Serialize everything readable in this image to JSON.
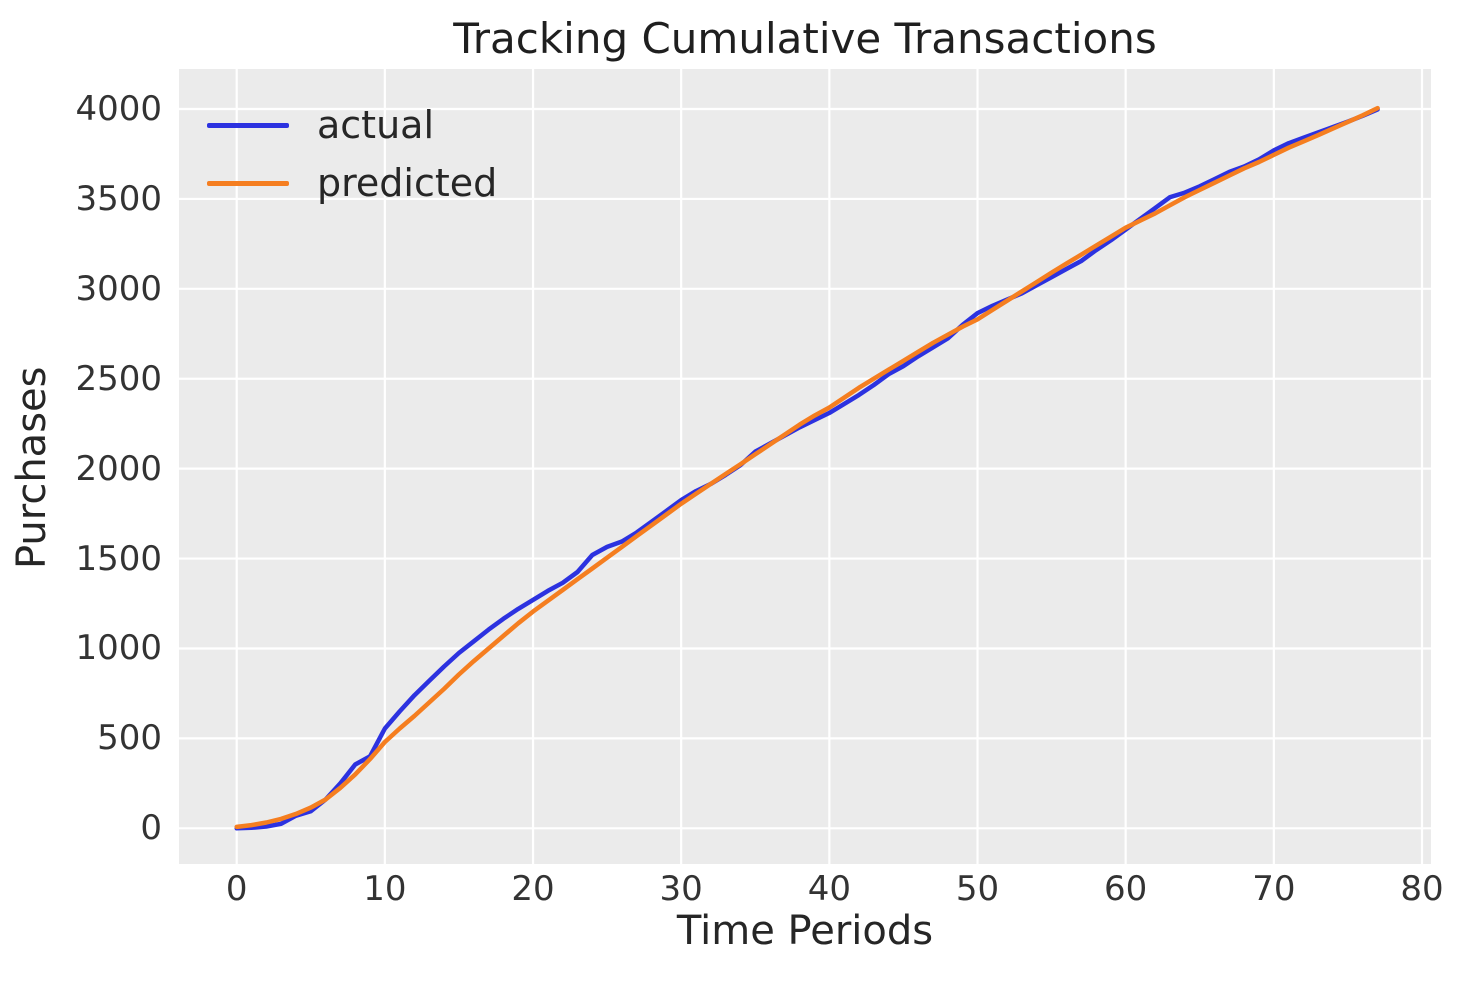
{
  "chart": {
    "title": "Tracking Cumulative Transactions",
    "xlabel": "Time Periods",
    "ylabel": "Purchases",
    "legend": [
      {
        "label": "actual",
        "color": "#2c32e0"
      },
      {
        "label": "predicted",
        "color": "#f57e20"
      }
    ],
    "colors": {
      "plot_background": "#ebebeb",
      "grid": "#ffffff",
      "actual_line": "#2c32e0",
      "predicted_line": "#f57e20",
      "text": "#262626"
    }
  },
  "chart_data": {
    "type": "line",
    "title": "Tracking Cumulative Transactions",
    "xlabel": "Time Periods",
    "ylabel": "Purchases",
    "grid": true,
    "legend_position": "upper left",
    "xlim": [
      -3.9,
      80.6
    ],
    "ylim": [
      -200,
      4220
    ],
    "xticks": [
      0,
      10,
      20,
      30,
      40,
      50,
      60,
      70,
      80
    ],
    "yticks": [
      0,
      500,
      1000,
      1500,
      2000,
      2500,
      3000,
      3500,
      4000
    ],
    "x": [
      0,
      1,
      2,
      3,
      4,
      5,
      6,
      7,
      8,
      9,
      10,
      11,
      12,
      13,
      14,
      15,
      16,
      17,
      18,
      19,
      20,
      21,
      22,
      23,
      24,
      25,
      26,
      27,
      28,
      29,
      30,
      31,
      32,
      33,
      34,
      35,
      36,
      37,
      38,
      39,
      40,
      41,
      42,
      43,
      44,
      45,
      46,
      47,
      48,
      49,
      50,
      51,
      52,
      53,
      54,
      55,
      56,
      57,
      58,
      59,
      60,
      61,
      62,
      63,
      64,
      65,
      66,
      67,
      68,
      69,
      70,
      71,
      72,
      73,
      74,
      75,
      76,
      77
    ],
    "series": [
      {
        "name": "actual",
        "color": "#2c32e0",
        "values": [
          0,
          3,
          10,
          25,
          70,
          95,
          160,
          250,
          355,
          400,
          555,
          650,
          740,
          820,
          900,
          975,
          1040,
          1105,
          1165,
          1220,
          1270,
          1320,
          1365,
          1425,
          1520,
          1565,
          1595,
          1645,
          1705,
          1765,
          1825,
          1875,
          1915,
          1965,
          2020,
          2095,
          2140,
          2185,
          2230,
          2270,
          2310,
          2360,
          2410,
          2465,
          2525,
          2570,
          2625,
          2675,
          2725,
          2800,
          2865,
          2905,
          2940,
          2975,
          3020,
          3065,
          3110,
          3155,
          3215,
          3270,
          3330,
          3390,
          3450,
          3510,
          3535,
          3570,
          3610,
          3650,
          3680,
          3720,
          3770,
          3810,
          3840,
          3870,
          3900,
          3930,
          3962,
          3998
        ]
      },
      {
        "name": "predicted",
        "color": "#f57e20",
        "values": [
          8,
          18,
          32,
          52,
          80,
          115,
          160,
          225,
          300,
          385,
          480,
          555,
          625,
          700,
          775,
          855,
          930,
          1000,
          1070,
          1140,
          1205,
          1265,
          1325,
          1385,
          1445,
          1505,
          1565,
          1625,
          1685,
          1745,
          1805,
          1860,
          1915,
          1970,
          2025,
          2080,
          2135,
          2190,
          2245,
          2295,
          2340,
          2395,
          2450,
          2500,
          2550,
          2600,
          2650,
          2700,
          2745,
          2790,
          2830,
          2882,
          2934,
          2986,
          3038,
          3090,
          3140,
          3190,
          3240,
          3290,
          3340,
          3380,
          3420,
          3465,
          3510,
          3550,
          3590,
          3630,
          3670,
          3705,
          3745,
          3785,
          3820,
          3855,
          3892,
          3928,
          3965,
          4005
        ]
      }
    ]
  }
}
